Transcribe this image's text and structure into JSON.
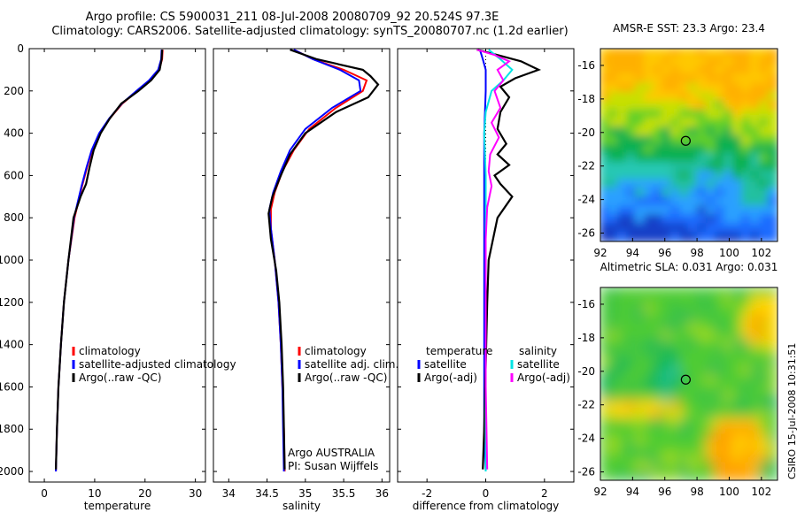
{
  "page": {
    "title_line1": "Argo profile: CS 5900031_211 08-Jul-2008 20080709_92 20.524S 97.3E",
    "title_line2": "Climatology: CARS2006. Satellite-adjusted climatology: synTS_20080707.nc (1.2d earlier)",
    "footer": "CSIRO 15-Jul-2008 10:31:51"
  },
  "colors": {
    "climatology": "#ff0000",
    "satellite": "#0000ff",
    "argo": "#000000",
    "sat_salinity": "#00e5e5",
    "argo_salinity": "#ff00ff"
  },
  "chart_data": [
    {
      "type": "line",
      "xlabel": "temperature",
      "xlim": [
        -3,
        32
      ],
      "ylim": [
        0,
        2050
      ],
      "xticks": [
        0,
        10,
        20,
        30
      ],
      "yticks": [
        0,
        200,
        400,
        600,
        800,
        1000,
        1200,
        1400,
        1600,
        1800,
        2000
      ],
      "legend": [
        "climatology",
        "satellite-adjusted climatology",
        "Argo(..raw -QC)"
      ],
      "series": [
        {
          "name": "climatology",
          "color": "#ff0000",
          "x": [
            23.5,
            23.4,
            22.8,
            21.0,
            18.5,
            15.5,
            13.0,
            11.0,
            9.5,
            8.5,
            7.5,
            6.0,
            4.8,
            3.9,
            3.3,
            2.8,
            2.5,
            2.3
          ],
          "y": [
            5,
            50,
            100,
            150,
            200,
            260,
            330,
            400,
            480,
            560,
            650,
            800,
            1000,
            1200,
            1400,
            1600,
            1800,
            2000
          ]
        },
        {
          "name": "satellite-adjusted climatology",
          "color": "#0000ff",
          "x": [
            23.3,
            23.2,
            22.6,
            20.8,
            18.3,
            15.4,
            12.9,
            10.9,
            9.4,
            8.4,
            7.4,
            5.9,
            4.8,
            3.9,
            3.3,
            2.8,
            2.5,
            2.3
          ],
          "y": [
            5,
            50,
            100,
            150,
            200,
            260,
            330,
            400,
            480,
            560,
            650,
            800,
            1000,
            1200,
            1400,
            1600,
            1800,
            2000
          ]
        },
        {
          "name": "Argo(..raw -QC)",
          "color": "#000000",
          "x": [
            23.4,
            23.3,
            22.9,
            21.2,
            18.7,
            15.3,
            13.0,
            11.2,
            9.8,
            9.0,
            8.3,
            7.2,
            5.8,
            4.8,
            3.9,
            3.3,
            2.8,
            2.5,
            2.3
          ],
          "y": [
            5,
            50,
            100,
            150,
            200,
            260,
            330,
            400,
            480,
            560,
            640,
            700,
            800,
            1000,
            1200,
            1400,
            1600,
            1800,
            1990
          ]
        }
      ]
    },
    {
      "type": "line",
      "xlabel": "salinity",
      "xlim": [
        33.8,
        36.1
      ],
      "ylim": [
        0,
        2050
      ],
      "xticks": [
        34,
        34.5,
        35,
        35.5,
        36
      ],
      "legend": [
        "climatology",
        "satellite adj. clim.",
        "Argo(..raw -QC)"
      ],
      "annotations": [
        "Argo AUSTRALIA",
        "PI: Susan Wijffels"
      ],
      "series": [
        {
          "name": "climatology",
          "color": "#ff0000",
          "x": [
            34.85,
            35.1,
            35.5,
            35.8,
            35.75,
            35.4,
            35.05,
            34.85,
            34.7,
            34.6,
            34.55,
            34.55,
            34.6,
            34.65,
            34.68,
            34.7,
            34.72,
            34.73
          ],
          "y": [
            5,
            50,
            100,
            150,
            200,
            280,
            380,
            480,
            580,
            680,
            760,
            850,
            1000,
            1200,
            1400,
            1600,
            1800,
            2000
          ]
        },
        {
          "name": "satellite adj. clim.",
          "color": "#0000ff",
          "x": [
            34.85,
            35.1,
            35.45,
            35.7,
            35.72,
            35.35,
            35.0,
            34.8,
            34.68,
            34.58,
            34.53,
            34.55,
            34.6,
            34.65,
            34.68,
            34.7,
            34.71,
            34.72
          ],
          "y": [
            5,
            50,
            100,
            150,
            200,
            280,
            380,
            480,
            580,
            680,
            760,
            850,
            1000,
            1200,
            1400,
            1600,
            1800,
            2000
          ]
        },
        {
          "name": "Argo(..raw -QC)",
          "color": "#000000",
          "x": [
            34.8,
            35.15,
            35.75,
            35.85,
            35.95,
            35.82,
            35.4,
            35.0,
            34.8,
            34.68,
            34.57,
            34.52,
            34.55,
            34.62,
            34.66,
            34.69,
            34.71,
            34.72,
            34.73
          ],
          "y": [
            5,
            50,
            100,
            130,
            170,
            230,
            300,
            400,
            500,
            600,
            700,
            780,
            900,
            1050,
            1200,
            1400,
            1600,
            1800,
            1990
          ]
        }
      ]
    },
    {
      "type": "line",
      "xlabel": "difference from climatology",
      "xlim": [
        -3,
        3
      ],
      "ylim": [
        0,
        2050
      ],
      "xticks": [
        -2,
        0,
        2
      ],
      "legend_columns": [
        {
          "heading": "temperature",
          "items": [
            "satellite",
            "Argo(-adj)"
          ]
        },
        {
          "heading": "salinity",
          "items": [
            "satellite",
            "Argo(-adj)"
          ]
        }
      ],
      "series": [
        {
          "name": "temperature satellite",
          "color": "#0000ff",
          "x": [
            -0.2,
            -0.1,
            0.0,
            0.0,
            -0.05,
            -0.05,
            -0.05,
            -0.05,
            -0.05,
            0.0
          ],
          "y": [
            5,
            50,
            100,
            200,
            400,
            800,
            1200,
            1600,
            1800,
            2000
          ]
        },
        {
          "name": "temperature Argo(-adj)",
          "color": "#000000",
          "x": [
            -0.3,
            0.4,
            1.2,
            1.8,
            1.0,
            0.5,
            0.8,
            0.5,
            0.4,
            0.7,
            0.4,
            0.8,
            0.3,
            0.5,
            0.9,
            0.4,
            0.1,
            0.05,
            0.0,
            -0.05,
            -0.1
          ],
          "y": [
            5,
            30,
            60,
            100,
            140,
            180,
            230,
            300,
            380,
            450,
            500,
            550,
            600,
            640,
            700,
            800,
            1000,
            1200,
            1500,
            1800,
            1990
          ]
        },
        {
          "name": "salinity satellite",
          "color": "#00e5e5",
          "x": [
            0.1,
            0.5,
            0.9,
            0.6,
            0.2,
            0.0,
            -0.05,
            0.0,
            0.0,
            0.0,
            0.0
          ],
          "y": [
            5,
            50,
            100,
            150,
            200,
            300,
            400,
            600,
            1000,
            1500,
            2000
          ]
        },
        {
          "name": "salinity Argo(-adj)",
          "color": "#ff00ff",
          "x": [
            -0.3,
            0.3,
            0.8,
            0.4,
            0.6,
            0.3,
            0.5,
            0.2,
            0.45,
            0.15,
            0.1,
            0.2,
            0.05,
            0.0,
            0.0,
            0.0,
            0.05
          ],
          "y": [
            5,
            30,
            60,
            100,
            150,
            200,
            280,
            350,
            420,
            500,
            580,
            650,
            750,
            900,
            1200,
            1600,
            1990
          ]
        }
      ]
    },
    {
      "type": "heatmap",
      "title": "AMSR-E SST: 23.3 Argo: 23.4",
      "xlim": [
        92,
        103
      ],
      "ylim": [
        -26.5,
        -15
      ],
      "xticks": [
        92,
        94,
        96,
        98,
        100,
        102
      ],
      "yticks": [
        -16,
        -18,
        -20,
        -22,
        -24,
        -26
      ],
      "marker": {
        "lon": 97.3,
        "lat": -20.5
      }
    },
    {
      "type": "heatmap",
      "title": "Altimetric SLA: 0.031 Argo: 0.031",
      "xlim": [
        92,
        103
      ],
      "ylim": [
        -26.5,
        -15
      ],
      "xticks": [
        92,
        94,
        96,
        98,
        100,
        102
      ],
      "yticks": [
        -16,
        -18,
        -20,
        -22,
        -24,
        -26
      ],
      "marker": {
        "lon": 97.3,
        "lat": -20.5
      }
    }
  ]
}
